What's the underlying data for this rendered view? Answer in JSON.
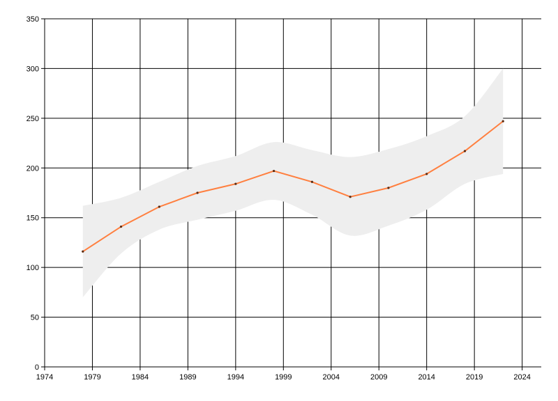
{
  "chart_data": {
    "type": "line",
    "xlim": [
      1974,
      2026
    ],
    "ylim": [
      0,
      350
    ],
    "x_ticks": [
      "1974",
      "1979",
      "1984",
      "1989",
      "1994",
      "1999",
      "2004",
      "2009",
      "2014",
      "2019",
      "2024"
    ],
    "y_ticks": [
      "0",
      "50",
      "100",
      "150",
      "200",
      "250",
      "300",
      "350"
    ],
    "grid": true,
    "legend": "none",
    "series": [
      {
        "type": "line",
        "color": "#ff7f3f",
        "x": [
          1978,
          1982,
          1986,
          1990,
          1994,
          1998,
          2002,
          2006,
          2010,
          2014,
          2018,
          2022
        ],
        "y": [
          116,
          141,
          161,
          175,
          184,
          197,
          186,
          171,
          180,
          194,
          217,
          247
        ]
      },
      {
        "type": "range-band",
        "color": "#eeeeee",
        "x": [
          1978,
          1982,
          1986,
          1990,
          1994,
          1998,
          2002,
          2006,
          2010,
          2014,
          2018,
          2022
        ],
        "upper": [
          162,
          170,
          186,
          202,
          212,
          226,
          218,
          211,
          219,
          232,
          252,
          300
        ],
        "lower": [
          70,
          114,
          138,
          148,
          157,
          168,
          153,
          132,
          142,
          158,
          184,
          194
        ]
      }
    ]
  }
}
